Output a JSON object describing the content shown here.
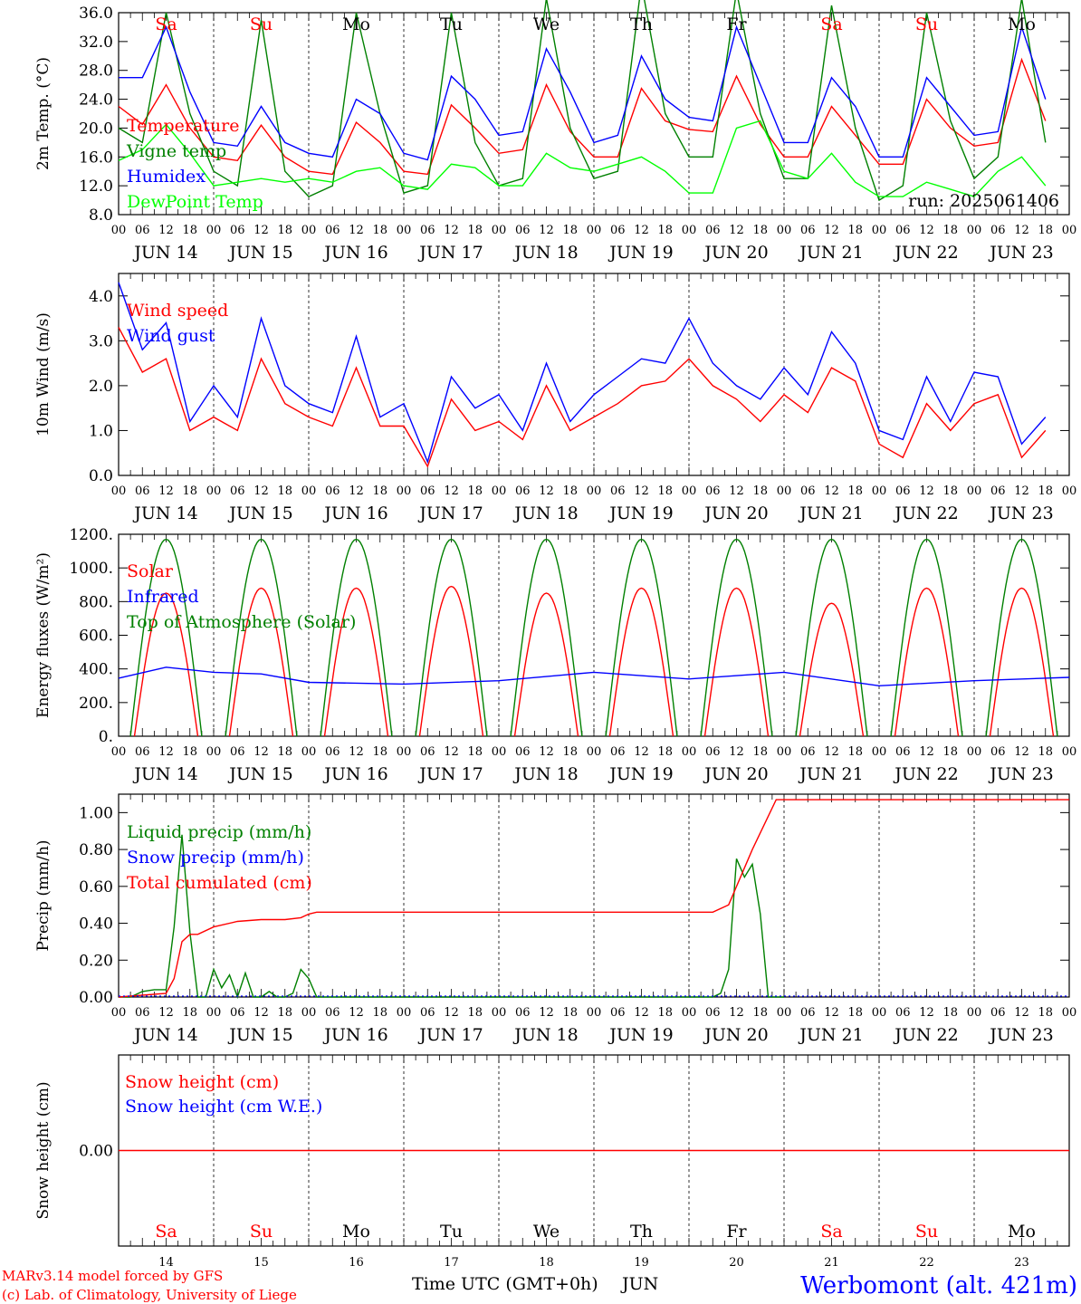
{
  "chart_data": [
    {
      "type": "line",
      "ylabel": "2m Temp. (°C)",
      "ylim": [
        8.0,
        36.0
      ],
      "yticks": [
        "8.0",
        "12.0",
        "16.0",
        "20.0",
        "24.0",
        "28.0",
        "32.0",
        "36.0"
      ],
      "x_unit": "hours since 2025-06-14 00 UTC",
      "legend": [
        "Temperature",
        "Vigne temp",
        "Humidex",
        "DewPoint Temp"
      ],
      "annotation": "run: 2025061406",
      "series": [
        {
          "name": "Temperature",
          "color": "#ff0000",
          "x": [
            0,
            6,
            12,
            18,
            24,
            30,
            36,
            42,
            48,
            54,
            60,
            66,
            72,
            78,
            84,
            90,
            96,
            102,
            108,
            114,
            120,
            126,
            132,
            138,
            144,
            150,
            156,
            162,
            168,
            174,
            180,
            186,
            192,
            198,
            204,
            210,
            216,
            222,
            228,
            234
          ],
          "y": [
            23,
            20.5,
            26,
            20,
            16,
            15.5,
            20.4,
            16,
            14,
            13.6,
            20.8,
            18,
            14,
            13.6,
            23.2,
            20,
            16.5,
            17,
            26,
            19.5,
            16,
            16,
            25.5,
            21,
            19.8,
            19.5,
            27.2,
            20.5,
            16,
            16,
            23,
            19,
            15,
            15,
            24,
            20,
            17.5,
            18,
            29.5,
            21
          ]
        },
        {
          "name": "Vigne temp",
          "color": "#008000",
          "x": [
            0,
            6,
            12,
            18,
            24,
            30,
            36,
            42,
            48,
            54,
            60,
            66,
            72,
            78,
            84,
            90,
            96,
            102,
            108,
            114,
            120,
            126,
            132,
            138,
            144,
            150,
            156,
            162,
            168,
            174,
            180,
            186,
            192,
            198,
            204,
            210,
            216,
            222,
            228,
            234
          ],
          "y": [
            20,
            18,
            36,
            22,
            14,
            12,
            35,
            14,
            10.5,
            12,
            36,
            22,
            11,
            12,
            36,
            18,
            12,
            13,
            38,
            20,
            13,
            14,
            40,
            22,
            16,
            16,
            39,
            22,
            13,
            13,
            37,
            20,
            10,
            12,
            36,
            21,
            13,
            16,
            38,
            18
          ]
        },
        {
          "name": "Humidex",
          "color": "#0000ff",
          "x": [
            0,
            6,
            12,
            18,
            24,
            30,
            36,
            42,
            48,
            54,
            60,
            66,
            72,
            78,
            84,
            90,
            96,
            102,
            108,
            114,
            120,
            126,
            132,
            138,
            144,
            150,
            156,
            162,
            168,
            174,
            180,
            186,
            192,
            198,
            204,
            210,
            216,
            222,
            228,
            234
          ],
          "y": [
            27,
            27,
            34,
            25,
            18,
            17.5,
            23,
            18,
            16.5,
            16,
            24,
            22,
            16.5,
            15.6,
            27.2,
            24,
            19,
            19.5,
            31,
            25,
            18,
            19,
            30,
            24,
            21.5,
            21,
            34,
            26,
            18,
            18,
            27,
            23,
            16,
            16,
            27,
            23,
            19,
            19.5,
            34,
            24
          ]
        },
        {
          "name": "DewPoint Temp",
          "color": "#00ff00",
          "x": [
            0,
            6,
            12,
            18,
            24,
            30,
            36,
            42,
            48,
            54,
            60,
            66,
            72,
            78,
            84,
            90,
            96,
            102,
            108,
            114,
            120,
            126,
            132,
            138,
            144,
            150,
            156,
            162,
            168,
            174,
            180,
            186,
            192,
            198,
            204,
            210,
            216,
            222,
            228,
            234
          ],
          "y": [
            15.5,
            17,
            20.5,
            16.5,
            12,
            12.5,
            13,
            12.5,
            13,
            12.5,
            14,
            14.5,
            12,
            11.5,
            15,
            14.5,
            12,
            12,
            16.5,
            14.5,
            14,
            15,
            16,
            14,
            11,
            11,
            20,
            21,
            14,
            13,
            16.5,
            12.5,
            10.5,
            10.5,
            12.5,
            11.5,
            10.5,
            14,
            16,
            12
          ]
        }
      ]
    },
    {
      "type": "line",
      "ylabel": "10m Wind (m/s)",
      "ylim": [
        0.0,
        4.5
      ],
      "yticks": [
        "0.0",
        "1.0",
        "2.0",
        "3.0",
        "4.0"
      ],
      "legend": [
        "Wind speed",
        "Wind gust"
      ],
      "series": [
        {
          "name": "Wind speed",
          "color": "#ff0000",
          "x": [
            0,
            6,
            12,
            18,
            24,
            30,
            36,
            42,
            48,
            54,
            60,
            66,
            72,
            78,
            84,
            90,
            96,
            102,
            108,
            114,
            120,
            126,
            132,
            138,
            144,
            150,
            156,
            162,
            168,
            174,
            180,
            186,
            192,
            198,
            204,
            210,
            216,
            222,
            228,
            234
          ],
          "y": [
            3.3,
            2.3,
            2.6,
            1.0,
            1.3,
            1.0,
            2.6,
            1.6,
            1.3,
            1.1,
            2.4,
            1.1,
            1.1,
            0.2,
            1.7,
            1.0,
            1.2,
            0.8,
            2.0,
            1.0,
            1.3,
            1.6,
            2.0,
            2.1,
            2.6,
            2.0,
            1.7,
            1.2,
            1.8,
            1.4,
            2.4,
            2.1,
            0.7,
            0.4,
            1.6,
            1.0,
            1.6,
            1.8,
            0.4,
            1.0
          ]
        },
        {
          "name": "Wind gust",
          "color": "#0000ff",
          "x": [
            0,
            6,
            12,
            18,
            24,
            30,
            36,
            42,
            48,
            54,
            60,
            66,
            72,
            78,
            84,
            90,
            96,
            102,
            108,
            114,
            120,
            126,
            132,
            138,
            144,
            150,
            156,
            162,
            168,
            174,
            180,
            186,
            192,
            198,
            204,
            210,
            216,
            222,
            228,
            234
          ],
          "y": [
            4.3,
            2.8,
            3.4,
            1.2,
            2.0,
            1.3,
            3.5,
            2.0,
            1.6,
            1.4,
            3.1,
            1.3,
            1.6,
            0.3,
            2.2,
            1.5,
            1.8,
            1.0,
            2.5,
            1.2,
            1.8,
            2.2,
            2.6,
            2.5,
            3.5,
            2.5,
            2.0,
            1.7,
            2.4,
            1.8,
            3.2,
            2.5,
            1.0,
            0.8,
            2.2,
            1.2,
            2.3,
            2.2,
            0.7,
            1.3
          ]
        }
      ]
    },
    {
      "type": "line",
      "ylabel": "Energy fluxes (W/m²)",
      "ylim": [
        0,
        1200
      ],
      "yticks": [
        "0.",
        "200.",
        "400.",
        "600.",
        "800.",
        "1000.",
        "1200."
      ],
      "legend": [
        "Solar",
        "Infrared",
        "Top of Atmosphere (Solar)"
      ],
      "toa_peak": 1170,
      "solar_peaks": [
        850,
        880,
        880,
        890,
        850,
        880,
        880,
        790,
        880,
        880,
        880
      ],
      "infrared": {
        "x": [
          0,
          12,
          24,
          36,
          48,
          72,
          96,
          120,
          144,
          168,
          192,
          216,
          240
        ],
        "y": [
          345,
          410,
          380,
          370,
          320,
          310,
          330,
          380,
          340,
          380,
          300,
          330,
          350
        ]
      }
    },
    {
      "type": "line",
      "ylabel": "Precip (mm/h)",
      "ylim": [
        0.0,
        1.1
      ],
      "yticks": [
        "0.00",
        "0.20",
        "0.40",
        "0.60",
        "0.80",
        "1.00"
      ],
      "legend": [
        "Liquid precip (mm/h)",
        "Snow precip (mm/h)",
        "Total cumulated (cm)"
      ],
      "series": [
        {
          "name": "Liquid precip (mm/h)",
          "color": "#008000",
          "x": [
            0,
            3,
            6,
            9,
            12,
            14,
            16,
            18,
            20,
            22,
            24,
            26,
            28,
            30,
            32,
            34,
            36,
            38,
            40,
            42,
            44,
            46,
            48,
            50,
            150,
            152,
            154,
            156,
            158,
            160,
            162,
            164,
            166,
            168
          ],
          "y": [
            0,
            0,
            0.03,
            0.04,
            0.04,
            0.38,
            0.88,
            0.35,
            0,
            0,
            0.15,
            0.05,
            0.12,
            0,
            0.13,
            0,
            0,
            0.03,
            0,
            0,
            0.02,
            0.15,
            0.1,
            0,
            0,
            0.02,
            0.15,
            0.75,
            0.65,
            0.72,
            0.45,
            0,
            0,
            0
          ]
        },
        {
          "name": "Total cumulated (cm)",
          "color": "#ff0000",
          "x": [
            0,
            12,
            14,
            16,
            18,
            20,
            24,
            30,
            36,
            42,
            46,
            48,
            50,
            60,
            150,
            154,
            160,
            166,
            168,
            240
          ],
          "y": [
            0,
            0.02,
            0.1,
            0.3,
            0.34,
            0.34,
            0.38,
            0.41,
            0.42,
            0.42,
            0.43,
            0.45,
            0.46,
            0.46,
            0.46,
            0.5,
            0.8,
            1.07,
            1.07,
            1.07
          ]
        }
      ]
    },
    {
      "type": "line",
      "ylabel": "Snow height (cm)",
      "ylim": [
        -1,
        1
      ],
      "yticks": [
        "0.00"
      ],
      "legend": [
        "Snow height (cm)",
        "Snow height (cm W.E.)"
      ],
      "series": [
        {
          "name": "Snow height (cm)",
          "color": "#ff0000",
          "x": [
            0,
            240
          ],
          "y": [
            0,
            0
          ]
        }
      ]
    }
  ],
  "axis": {
    "hour_labels": [
      "00",
      "06",
      "12",
      "18"
    ],
    "date_labels": [
      "JUN 14",
      "JUN 15",
      "JUN 16",
      "JUN 17",
      "JUN 18",
      "JUN 19",
      "JUN 20",
      "JUN 21",
      "JUN 22",
      "JUN 23"
    ],
    "day_names": [
      "Sa",
      "Su",
      "Mo",
      "Tu",
      "We",
      "Th",
      "Fr",
      "Sa",
      "Su",
      "Mo"
    ],
    "weekend_flags": [
      true,
      true,
      false,
      false,
      false,
      false,
      false,
      true,
      true,
      false
    ],
    "day_numbers": [
      "14",
      "15",
      "16",
      "17",
      "18",
      "19",
      "20",
      "21",
      "22",
      "23"
    ],
    "xlabel": "Time UTC (GMT+0h)",
    "month": "JUN"
  },
  "footer": {
    "credit_line1": "MARv3.14 model forced by GFS",
    "credit_line2": "(c) Lab. of Climatology, University of Liege",
    "station": "Werbomont (alt. 421m)"
  },
  "colors": {
    "weekend": "#ff0000",
    "weekday": "#000000",
    "station": "#0000ff"
  }
}
